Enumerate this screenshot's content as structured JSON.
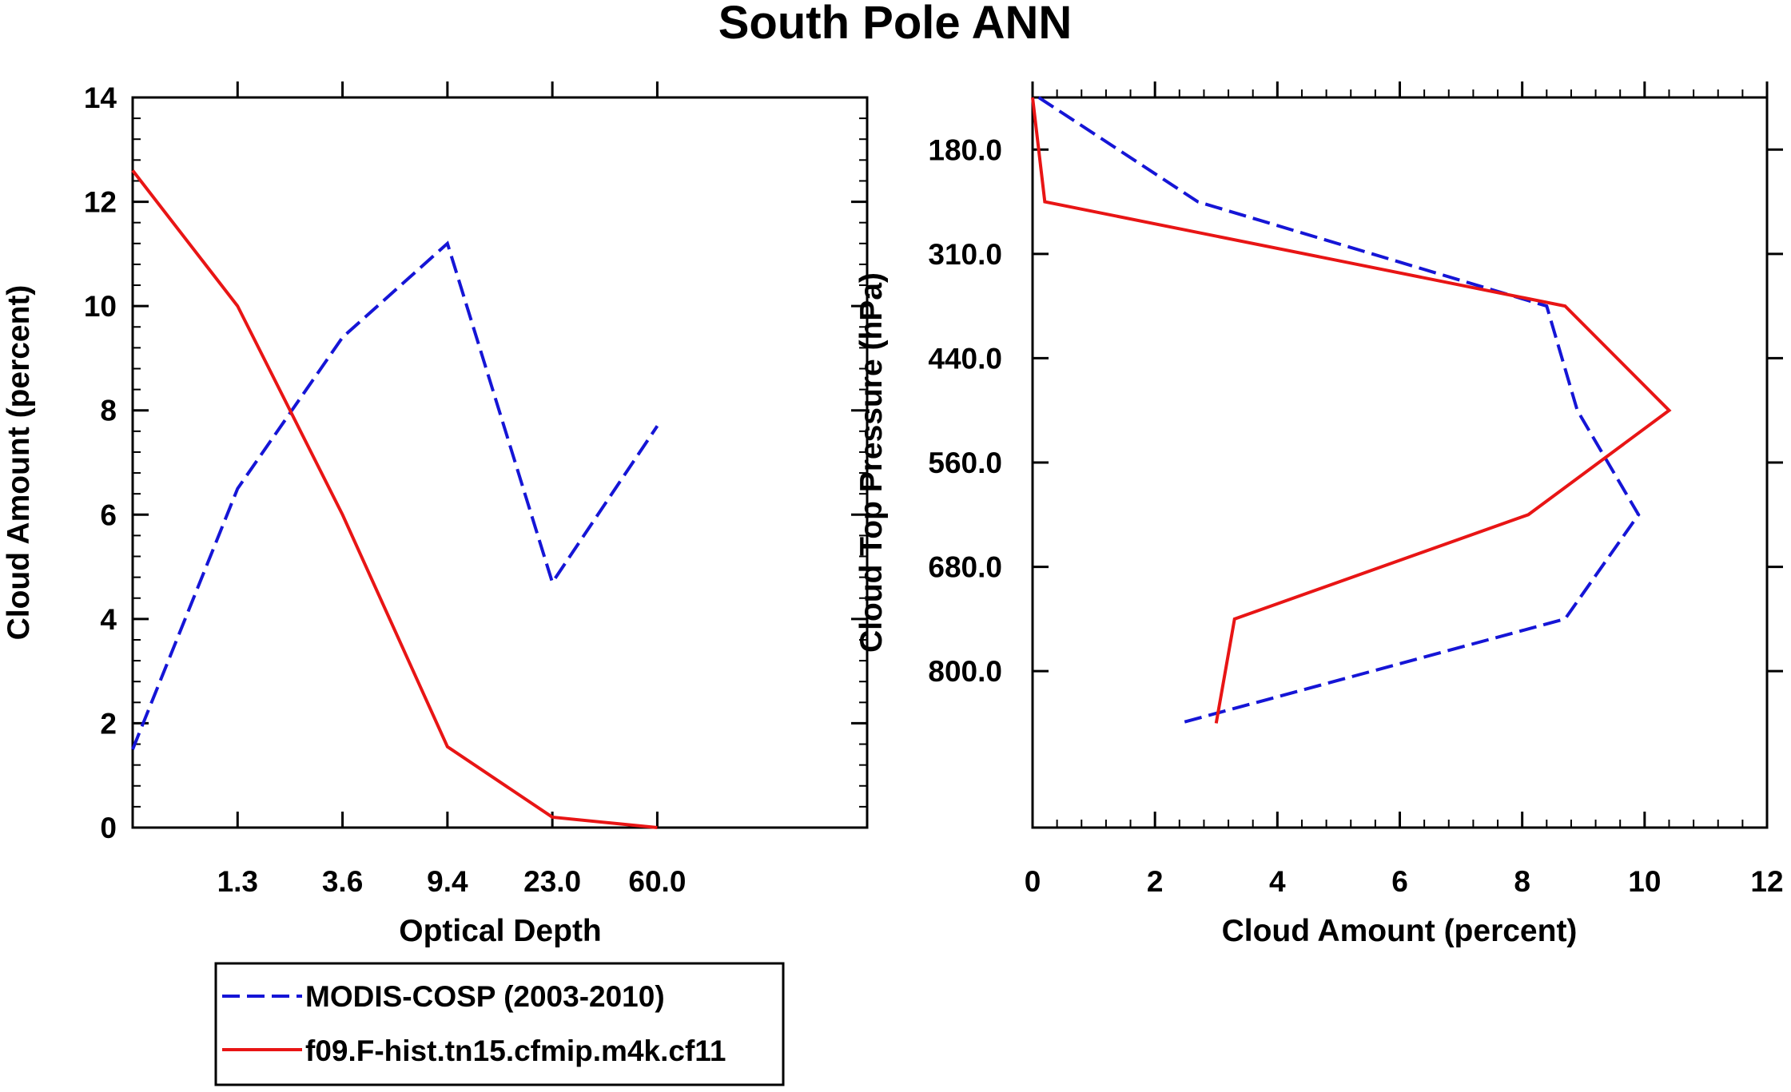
{
  "title": "South Pole ANN",
  "colors": {
    "modis": "#1515d6",
    "model": "#e81515",
    "axis": "#000000"
  },
  "legend": {
    "entries": [
      {
        "label": "MODIS-COSP (2003-2010)",
        "style": "dashed",
        "color": "#1515d6"
      },
      {
        "label": "f09.F-hist.tn15.cfmip.m4k.cf11",
        "style": "solid",
        "color": "#e81515"
      }
    ]
  },
  "chart_data": [
    {
      "type": "line",
      "xlabel": "Optical Depth",
      "ylabel": "Cloud Amount (percent)",
      "ylim": [
        0,
        14
      ],
      "yticks": [
        "0",
        "2",
        "4",
        "6",
        "8",
        "10",
        "12",
        "14"
      ],
      "xbins": 7,
      "xticks": [
        "1.3",
        "3.6",
        "9.4",
        "23.0",
        "60.0"
      ],
      "series": [
        {
          "name": "MODIS-COSP (2003-2010)",
          "x": [
            0,
            1,
            2,
            3,
            4,
            5
          ],
          "values": [
            1.5,
            6.5,
            9.4,
            11.2,
            4.7,
            7.7
          ]
        },
        {
          "name": "f09.F-hist.tn15.cfmip.m4k.cf11",
          "x": [
            0,
            1,
            2,
            3,
            4,
            5
          ],
          "values": [
            12.6,
            10.0,
            6.0,
            1.55,
            0.2,
            0.0
          ]
        }
      ]
    },
    {
      "type": "line",
      "xlabel": "Cloud Amount (percent)",
      "ylabel": "Cloud Top Pressure (hPa)",
      "xlim": [
        0,
        12
      ],
      "xticks": [
        "0",
        "2",
        "4",
        "6",
        "8",
        "10",
        "12"
      ],
      "ybins": 7,
      "yticks": [
        "180.0",
        "310.0",
        "440.0",
        "560.0",
        "680.0",
        "800.0"
      ],
      "series": [
        {
          "name": "MODIS-COSP (2003-2010)",
          "y": [
            0,
            1,
            2,
            3,
            4,
            5,
            6
          ],
          "values": [
            0.1,
            2.7,
            8.4,
            8.9,
            9.9,
            8.7,
            2.4
          ]
        },
        {
          "name": "f09.F-hist.tn15.cfmip.m4k.cf11",
          "y": [
            0,
            1,
            2,
            3,
            4,
            5,
            6
          ],
          "values": [
            0.0,
            0.2,
            8.7,
            10.4,
            8.1,
            3.3,
            3.0
          ]
        }
      ]
    }
  ]
}
